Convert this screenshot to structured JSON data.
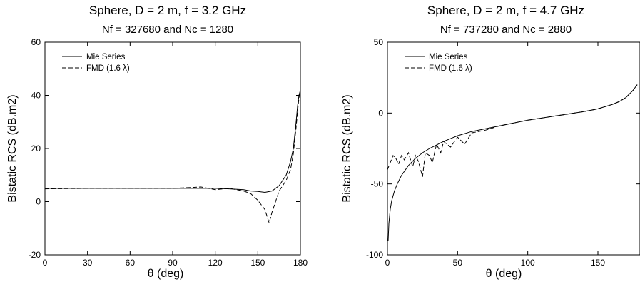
{
  "chart_data": [
    {
      "type": "line",
      "title": "Sphere, D = 2 m, f = 3.2 GHz",
      "subtitle": "Nf = 327680 and Nc = 1280",
      "xlabel": "θ   (deg)",
      "ylabel": "Bistatic RCS (dB.m2)",
      "xlim": [
        0,
        180
      ],
      "ylim": [
        -20,
        60
      ],
      "xticks": [
        0,
        30,
        60,
        90,
        120,
        150,
        180
      ],
      "yticks": [
        -20,
        0,
        20,
        40,
        60
      ],
      "grid": false,
      "legend_position": "top-left",
      "series": [
        {
          "name": "Mie Series",
          "style": "solid",
          "x": [
            0,
            30,
            60,
            90,
            110,
            120,
            130,
            140,
            145,
            150,
            155,
            160,
            165,
            170,
            173,
            175,
            177,
            178,
            179,
            180
          ],
          "y": [
            5.0,
            5.0,
            5.0,
            5.0,
            5.0,
            5.0,
            4.8,
            4.5,
            4.0,
            3.8,
            3.5,
            4.0,
            6.0,
            10.0,
            15.0,
            20.0,
            30.0,
            36.0,
            40.0,
            42.0
          ]
        },
        {
          "name": "FMD (1.6  λ)",
          "style": "dashed",
          "x": [
            0,
            30,
            60,
            90,
            110,
            120,
            130,
            140,
            145,
            150,
            155,
            158,
            160,
            165,
            170,
            173,
            175,
            177,
            178,
            179,
            180
          ],
          "y": [
            4.8,
            5.0,
            5.0,
            5.0,
            5.5,
            4.5,
            5.0,
            4.0,
            3.0,
            0.5,
            -3.0,
            -8.0,
            -4.0,
            4.0,
            8.0,
            12.0,
            18.0,
            28.0,
            34.0,
            39.0,
            42.0
          ]
        }
      ]
    },
    {
      "type": "line",
      "title": "Sphere, D = 2 m, f = 4.7 GHz",
      "subtitle": "Nf = 737280 and Nc = 2880",
      "xlabel": "θ   (deg)",
      "ylabel": "Bistatic RCS (dB.m2)",
      "xlim": [
        0,
        180
      ],
      "ylim": [
        -100,
        50
      ],
      "xticks": [
        0,
        50,
        100,
        150
      ],
      "yticks": [
        -100,
        -50,
        0,
        50
      ],
      "grid": false,
      "legend_position": "top-left",
      "series": [
        {
          "name": "Mie Series",
          "style": "solid",
          "x": [
            0.5,
            1,
            2,
            3,
            5,
            7,
            10,
            15,
            20,
            25,
            30,
            40,
            50,
            60,
            80,
            100,
            120,
            140,
            150,
            160,
            165,
            170,
            175,
            178
          ],
          "y": [
            -90,
            -78,
            -68,
            -62,
            -55,
            -50,
            -44,
            -37,
            -32,
            -28,
            -25,
            -20,
            -16,
            -13,
            -9,
            -5,
            -2,
            1,
            3,
            6,
            8,
            11,
            16,
            20
          ]
        },
        {
          "name": "FMD (1.6  λ)",
          "style": "dashed",
          "x": [
            0,
            2,
            4,
            6,
            8,
            10,
            12,
            15,
            18,
            20,
            22,
            25,
            27,
            30,
            32,
            35,
            38,
            40,
            45,
            50,
            55,
            60,
            70,
            80,
            100,
            120,
            140,
            150,
            160,
            165,
            170,
            175,
            178
          ],
          "y": [
            -40,
            -35,
            -30,
            -32,
            -36,
            -30,
            -33,
            -28,
            -38,
            -30,
            -34,
            -45,
            -28,
            -30,
            -35,
            -22,
            -28,
            -20,
            -24,
            -17,
            -22,
            -14,
            -12,
            -9,
            -5,
            -2,
            1,
            3,
            6,
            8,
            11,
            16,
            20
          ]
        }
      ]
    }
  ]
}
